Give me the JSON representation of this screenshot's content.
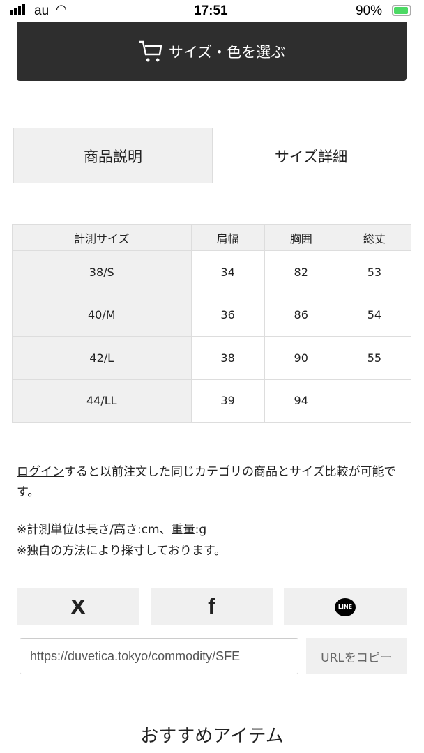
{
  "status": {
    "carrier": "au",
    "time": "17:51",
    "battery": "90%"
  },
  "cart_button": "サイズ・色を選ぶ",
  "tabs": [
    {
      "label": "商品説明"
    },
    {
      "label": "サイズ詳細"
    }
  ],
  "size_table": {
    "headers": [
      "計測サイズ",
      "肩幅",
      "胸囲",
      "総丈"
    ],
    "rows": [
      [
        "38/S",
        "34",
        "82",
        "53"
      ],
      [
        "40/M",
        "36",
        "86",
        "54"
      ],
      [
        "42/L",
        "38",
        "90",
        "55"
      ],
      [
        "44/LL",
        "39",
        "94",
        ""
      ]
    ]
  },
  "login_link": "ログイン",
  "login_text": "すると以前注文した同じカテゴリの商品とサイズ比較が可能です。",
  "notes": [
    "※計測単位は長さ/高さ:cm、重量:g",
    "※独自の方法により採寸しております。"
  ],
  "share": {
    "x": "X",
    "facebook": "f",
    "line": "LINE"
  },
  "url_value": "https://duvetica.tokyo/commodity/SFE",
  "copy_label": "URLをコピー",
  "recommend_title": "おすすめアイテム"
}
